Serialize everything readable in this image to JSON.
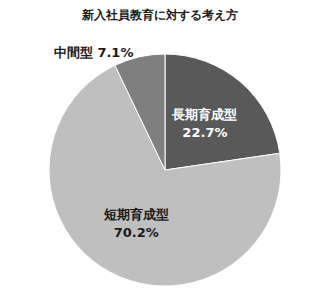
{
  "chart_data": {
    "type": "pie",
    "title": "新入社員教育に対する考え方",
    "categories": [
      "長期育成型",
      "短期育成型",
      "中間型"
    ],
    "values": [
      22.7,
      70.2,
      7.1
    ],
    "value_labels": [
      "22.7%",
      "70.2%",
      "7.1%"
    ],
    "colors": [
      "#595959",
      "#bfbfbf",
      "#7f7f7f"
    ],
    "data_labels": true
  }
}
